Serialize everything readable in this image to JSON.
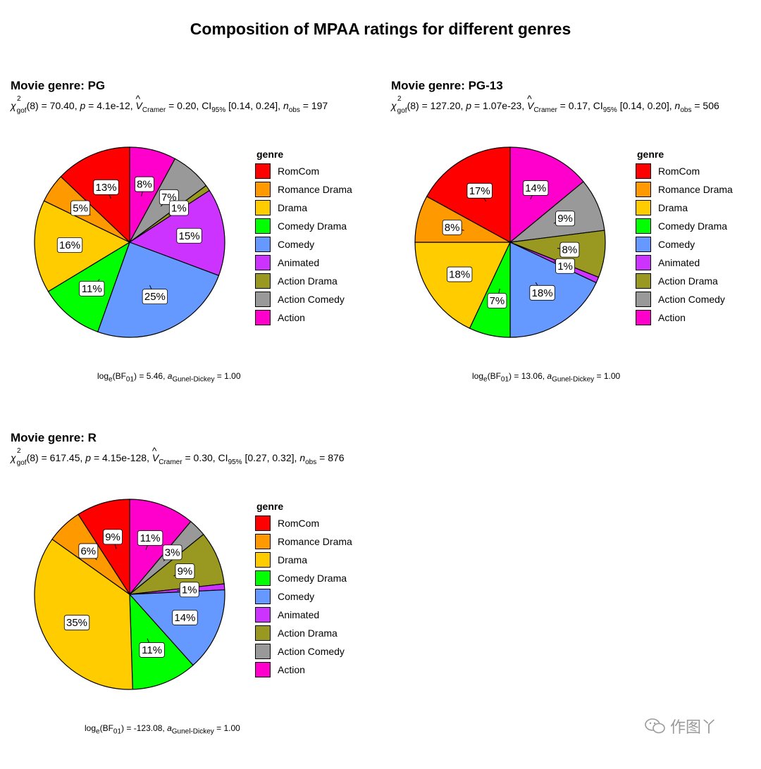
{
  "title": "Composition of MPAA ratings for different genres",
  "legend_title": "genre",
  "colors": {
    "RomCom": "#FF0000",
    "Romance Drama": "#FF9900",
    "Drama": "#FFCC00",
    "Comedy Drama": "#00FF00",
    "Comedy": "#6699FF",
    "Animated": "#CC33FF",
    "Action Drama": "#999922",
    "Action Comedy": "#999999",
    "Action": "#FF00CC"
  },
  "watermark": "作图丫",
  "panels": [
    {
      "title": "Movie genre: PG",
      "stats": {
        "df": "8",
        "chi2": "70.40",
        "p": "4.1e-12",
        "v": "0.20",
        "ci": "[0.14, 0.24]",
        "nobs": "197"
      },
      "bf": {
        "value": "5.46",
        "a": "1.00"
      }
    },
    {
      "title": "Movie genre: PG-13",
      "stats": {
        "df": "8",
        "chi2": "127.20",
        "p": "1.07e-23",
        "v": "0.17",
        "ci": "[0.14, 0.20]",
        "nobs": "506"
      },
      "bf": {
        "value": "13.06",
        "a": "1.00"
      }
    },
    {
      "title": "Movie genre: R",
      "stats": {
        "df": "8",
        "chi2": "617.45",
        "p": "4.15e-128",
        "v": "0.30",
        "ci": "[0.27, 0.32]",
        "nobs": "876"
      },
      "bf": {
        "value": "-123.08",
        "a": "1.00"
      }
    }
  ],
  "chart_data": [
    {
      "type": "pie",
      "title": "Movie genre: PG",
      "legend": "right",
      "categories": [
        "RomCom",
        "Romance Drama",
        "Drama",
        "Comedy Drama",
        "Comedy",
        "Animated",
        "Action Drama",
        "Action Comedy",
        "Action"
      ],
      "values": [
        13,
        5,
        16,
        11,
        25,
        15,
        1,
        7,
        8
      ],
      "labels": [
        "13%",
        "5%",
        "16%",
        "11%",
        "25%",
        "15%",
        "1%",
        "7%",
        "8%"
      ]
    },
    {
      "type": "pie",
      "title": "Movie genre: PG-13",
      "legend": "right",
      "categories": [
        "RomCom",
        "Romance Drama",
        "Drama",
        "Comedy Drama",
        "Comedy",
        "Animated",
        "Action Drama",
        "Action Comedy",
        "Action"
      ],
      "values": [
        17,
        8,
        18,
        7,
        18,
        1,
        8,
        9,
        14
      ],
      "labels": [
        "17%",
        "8%",
        "18%",
        "7%",
        "18%",
        "1%",
        "8%",
        "9%",
        "14%"
      ]
    },
    {
      "type": "pie",
      "title": "Movie genre: R",
      "legend": "right",
      "categories": [
        "RomCom",
        "Romance Drama",
        "Drama",
        "Comedy Drama",
        "Comedy",
        "Animated",
        "Action Drama",
        "Action Comedy",
        "Action"
      ],
      "values": [
        9,
        6,
        35,
        11,
        14,
        1,
        9,
        3,
        11
      ],
      "labels": [
        "9%",
        "6%",
        "35%",
        "11%",
        "14%",
        "1%",
        "9%",
        "3%",
        "11%"
      ]
    }
  ]
}
